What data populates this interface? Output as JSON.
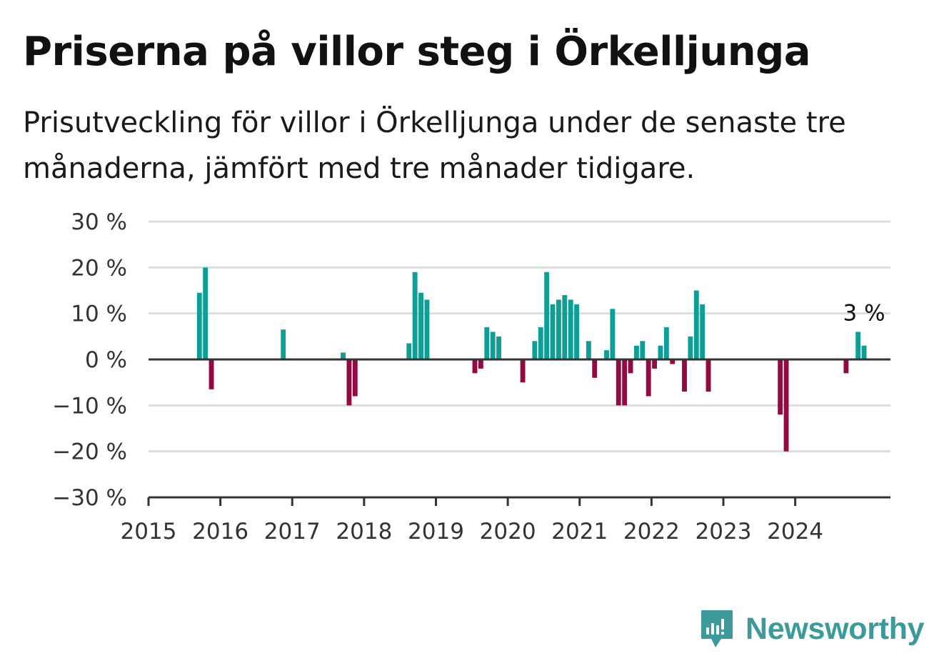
{
  "title": "Priserna på villor steg i Örkelljunga",
  "subtitle": "Prisutveckling för villor i Örkelljunga under de senaste tre månaderna, jämfört med tre månader tidigare.",
  "brand": {
    "name": "Newsworthy",
    "color": "#3d9a9a"
  },
  "colors": {
    "positive": "#0f9e96",
    "negative": "#930a42",
    "grid": "#dddddd",
    "axis": "#333333"
  },
  "chart_data": {
    "type": "bar",
    "title": "Priserna på villor steg i Örkelljunga",
    "subtitle": "Prisutveckling för villor i Örkelljunga under de senaste tre månaderna, jämfört med tre månader tidigare.",
    "xlabel": "",
    "ylabel": "",
    "ylim": [
      -30,
      30
    ],
    "yticks": [
      30,
      20,
      10,
      0,
      -10,
      -20,
      -30
    ],
    "ytick_labels": [
      "30 %",
      "20 %",
      "10 %",
      "0 %",
      "−10 %",
      "−20 %",
      "−30 %"
    ],
    "xlim": [
      "2015-01",
      "2025-05"
    ],
    "xtick_labels": [
      "2015",
      "2016",
      "2017",
      "2018",
      "2019",
      "2020",
      "2021",
      "2022",
      "2023",
      "2024"
    ],
    "grid": true,
    "x": [
      "2015-09",
      "2015-10",
      "2015-11",
      "2016-11",
      "2017-09",
      "2017-10",
      "2017-11",
      "2018-08",
      "2018-09",
      "2018-10",
      "2018-11",
      "2019-07",
      "2019-08",
      "2019-09",
      "2019-10",
      "2019-11",
      "2020-03",
      "2020-05",
      "2020-06",
      "2020-07",
      "2020-08",
      "2020-09",
      "2020-10",
      "2020-11",
      "2020-12",
      "2021-02",
      "2021-03",
      "2021-05",
      "2021-06",
      "2021-07",
      "2021-08",
      "2021-09",
      "2021-10",
      "2021-11",
      "2021-12",
      "2022-01",
      "2022-02",
      "2022-03",
      "2022-04",
      "2022-06",
      "2022-07",
      "2022-08",
      "2022-09",
      "2022-10",
      "2023-10",
      "2023-11",
      "2024-09",
      "2024-11",
      "2024-12"
    ],
    "values": [
      14.5,
      20,
      -6.5,
      6.5,
      1.5,
      -10,
      -8,
      3.5,
      19,
      14.5,
      13,
      -3,
      -2,
      7,
      6,
      5,
      -5,
      4,
      7,
      19,
      12,
      13,
      14,
      13,
      12,
      4,
      -4,
      2,
      11,
      -10,
      -10,
      -3,
      3,
      4,
      -8,
      -2,
      3,
      7,
      -1,
      -7,
      5,
      15,
      12,
      -7,
      -12,
      -20,
      -3,
      6,
      3
    ],
    "annotations": [
      {
        "x": "2024-12",
        "text": "3 %"
      }
    ]
  }
}
